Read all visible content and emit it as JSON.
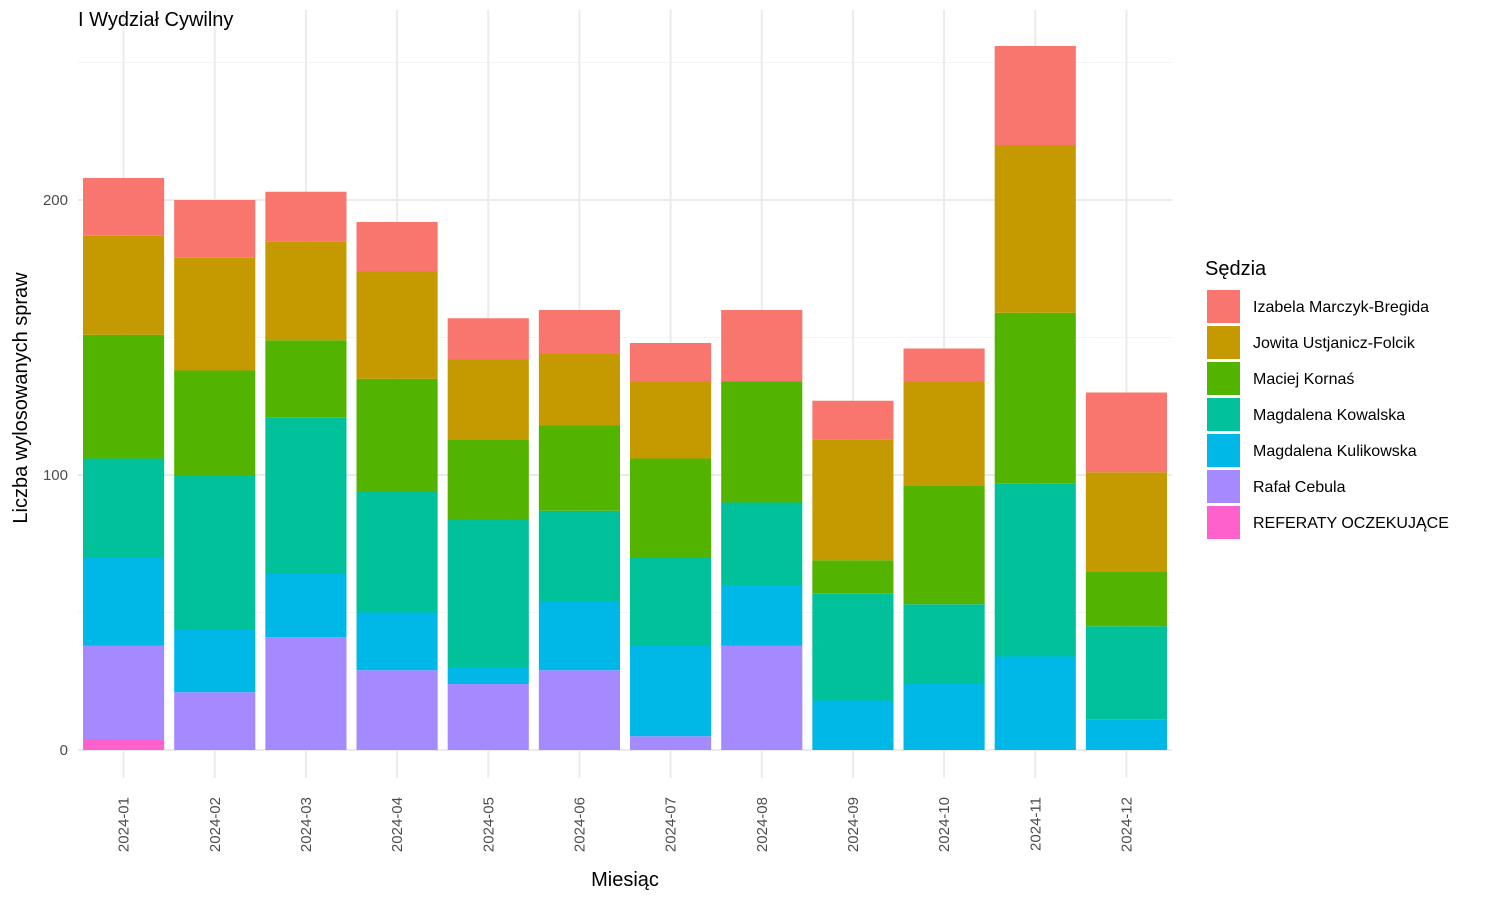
{
  "chart_data": {
    "type": "bar",
    "stacked": true,
    "title": "I Wydział Cywilny",
    "xlabel": "Miesiąc",
    "ylabel": "Liczba wylosowanych spraw",
    "ylim": [
      0,
      260
    ],
    "yticks": [
      0,
      100,
      200
    ],
    "grid": true,
    "legend": {
      "title": "Sędzia",
      "position": "right"
    },
    "categories": [
      "2024-01",
      "2024-02",
      "2024-03",
      "2024-04",
      "2024-05",
      "2024-06",
      "2024-07",
      "2024-08",
      "2024-09",
      "2024-10",
      "2024-11",
      "2024-12"
    ],
    "series": [
      {
        "name": "REFERATY OCZEKUJĄCE",
        "color": "#FF61CC",
        "values": [
          4,
          0,
          0,
          0,
          0,
          0,
          0,
          0,
          0,
          0,
          0,
          0
        ]
      },
      {
        "name": "Rafał Cebula",
        "color": "#A58AFF",
        "values": [
          34,
          21,
          41,
          29,
          24,
          29,
          5,
          38,
          0,
          0,
          0,
          0
        ]
      },
      {
        "name": "Magdalena Kulikowska",
        "color": "#00B8E7",
        "values": [
          32,
          23,
          23,
          21,
          6,
          25,
          33,
          22,
          18,
          24,
          34,
          11
        ]
      },
      {
        "name": "Magdalena Kowalska",
        "color": "#00C19A",
        "values": [
          36,
          56,
          57,
          44,
          54,
          33,
          32,
          30,
          39,
          29,
          63,
          34
        ]
      },
      {
        "name": "Maciej Kornaś",
        "color": "#53B400",
        "values": [
          45,
          38,
          28,
          41,
          29,
          31,
          36,
          44,
          12,
          43,
          62,
          20
        ]
      },
      {
        "name": "Jowita Ustjanicz-Folcik",
        "color": "#C49A00",
        "values": [
          36,
          41,
          36,
          39,
          29,
          26,
          28,
          0,
          44,
          38,
          61,
          36
        ]
      },
      {
        "name": "Izabela Marczyk-Bregida",
        "color": "#F8766D",
        "values": [
          21,
          21,
          18,
          18,
          15,
          16,
          14,
          26,
          14,
          12,
          36,
          29
        ]
      }
    ],
    "legend_order": [
      "Izabela Marczyk-Bregida",
      "Jowita Ustjanicz-Folcik",
      "Maciej Kornaś",
      "Magdalena Kowalska",
      "Magdalena Kulikowska",
      "Rafał Cebula",
      "REFERATY OCZEKUJĄCE"
    ]
  }
}
